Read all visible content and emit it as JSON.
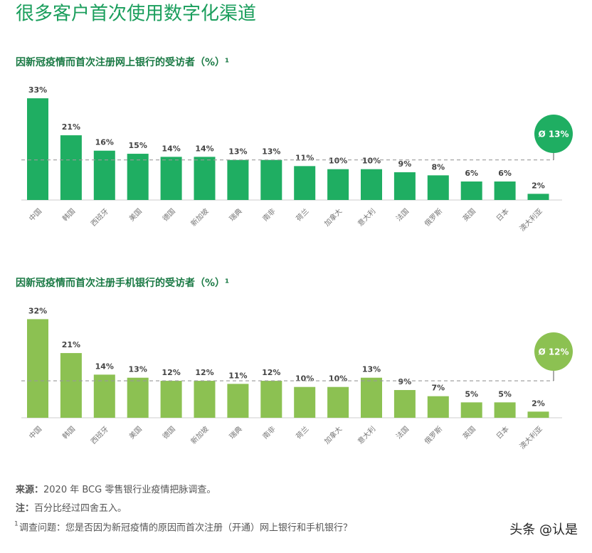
{
  "title": "很多客户首次使用数字化渠道",
  "chart_data": [
    {
      "type": "bar",
      "title": "因新冠疫情而首次注册网上银行的受访者（%）¹",
      "categories": [
        "中国",
        "韩国",
        "西班牙",
        "美国",
        "德国",
        "新加坡",
        "瑞典",
        "南非",
        "荷兰",
        "加拿大",
        "意大利",
        "法国",
        "俄罗斯",
        "英国",
        "日本",
        "澳大利亚"
      ],
      "values": [
        33,
        21,
        16,
        15,
        14,
        14,
        13,
        13,
        11,
        10,
        10,
        9,
        8,
        6,
        6,
        2
      ],
      "value_labels": [
        "33%",
        "21%",
        "16%",
        "15%",
        "14%",
        "14%",
        "13%",
        "13%",
        "11%",
        "10%",
        "10%",
        "9%",
        "8%",
        "6%",
        "6%",
        "2%"
      ],
      "color": "#1fae62",
      "average": 13,
      "average_label": "Ø 13%"
    },
    {
      "type": "bar",
      "title": "因新冠疫情而首次注册手机银行的受访者（%）¹",
      "categories": [
        "中国",
        "韩国",
        "西班牙",
        "美国",
        "德国",
        "新加坡",
        "瑞典",
        "南非",
        "荷兰",
        "加拿大",
        "意大利",
        "法国",
        "俄罗斯",
        "英国",
        "日本",
        "澳大利亚"
      ],
      "values": [
        32,
        21,
        14,
        13,
        12,
        12,
        11,
        12,
        10,
        10,
        13,
        9,
        7,
        5,
        5,
        2
      ],
      "value_labels": [
        "32%",
        "21%",
        "14%",
        "13%",
        "12%",
        "12%",
        "11%",
        "12%",
        "10%",
        "10%",
        "13%",
        "9%",
        "7%",
        "5%",
        "5%",
        "2%"
      ],
      "color": "#8cc152",
      "average": 12,
      "average_label": "Ø 12%"
    }
  ],
  "notes": {
    "source_label": "来源：",
    "source": "2020 年 BCG 零售银行业疫情把脉调查。",
    "note_label": "注：",
    "note": "百分比经过四舍五入。",
    "footnote_mark": "1",
    "footnote": "调查问题：您是否因为新冠疫情的原因而首次注册（开通）网上银行和手机银行？"
  },
  "watermark": "头条 @认是"
}
